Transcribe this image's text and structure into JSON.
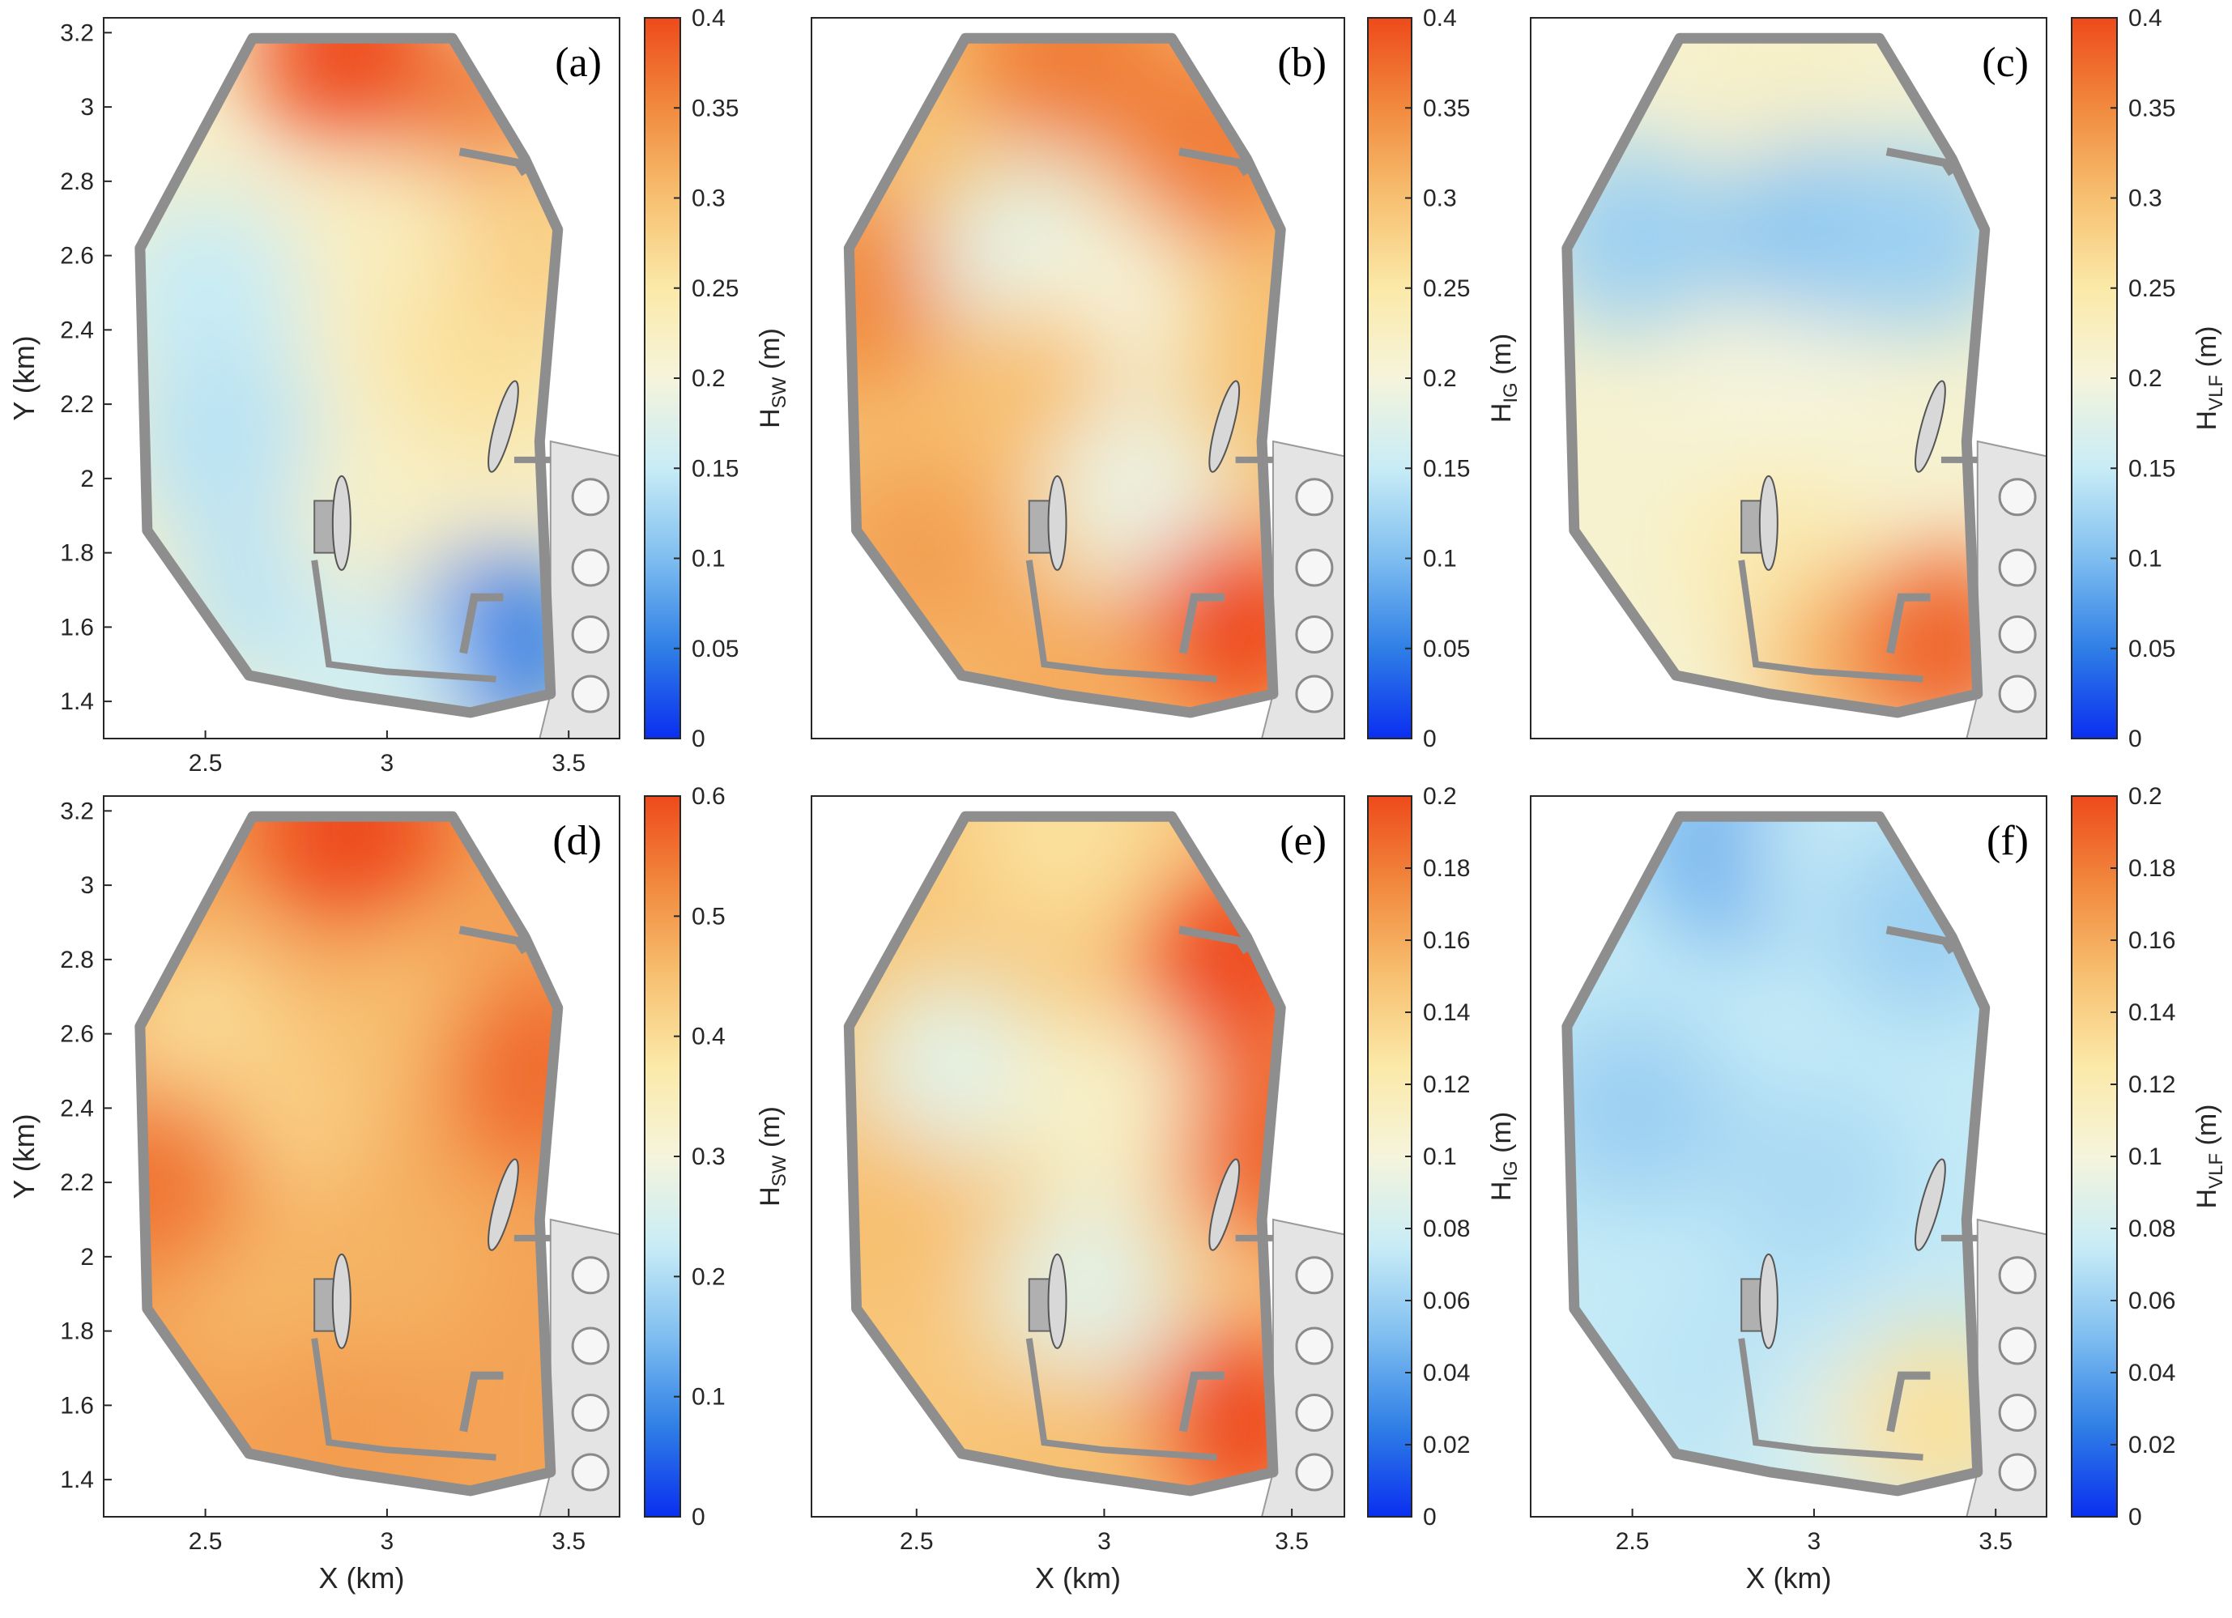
{
  "figure": {
    "colors": {
      "colormap": [
        "#0a2ff0",
        "#2f7fe6",
        "#7fbef0",
        "#c8ecf6",
        "#f5f4dc",
        "#fbe9a8",
        "#f7c071",
        "#f18a3e",
        "#ee4a1b"
      ],
      "land": "#e4e4e4",
      "breakwater": "#8e8e8e"
    }
  },
  "chart_data": [
    {
      "type": "heatmap",
      "panel": "(a)",
      "xlabel": "",
      "ylabel": "Y (km)",
      "xlim": [
        2.22,
        3.64
      ],
      "ylim": [
        1.3,
        3.24
      ],
      "x_ticks": [
        "2.5",
        "3",
        "3.5"
      ],
      "x_tick_values": [
        2.5,
        3.0,
        3.5
      ],
      "y_ticks": [
        "1.4",
        "1.6",
        "1.8",
        "2",
        "2.2",
        "2.4",
        "2.6",
        "2.8",
        "3",
        "3.2"
      ],
      "y_tick_values": [
        1.4,
        1.6,
        1.8,
        2.0,
        2.2,
        2.4,
        2.6,
        2.8,
        3.0,
        3.2
      ],
      "colorbar": {
        "label": "H",
        "sub": "SW",
        "unit": " (m)",
        "range": [
          0,
          0.4
        ],
        "ticks": [
          "0",
          "0.05",
          "0.1",
          "0.15",
          "0.2",
          "0.25",
          "0.3",
          "0.35",
          "0.4"
        ],
        "tick_values": [
          0,
          0.05,
          0.1,
          0.15,
          0.2,
          0.25,
          0.3,
          0.35,
          0.4
        ]
      },
      "field_points": [
        {
          "x": 2.9,
          "y": 3.15,
          "v": 0.4
        },
        {
          "x": 3.3,
          "y": 2.95,
          "v": 0.36
        },
        {
          "x": 2.5,
          "y": 2.5,
          "v": 0.15
        },
        {
          "x": 2.55,
          "y": 2.1,
          "v": 0.14
        },
        {
          "x": 2.7,
          "y": 1.7,
          "v": 0.14
        },
        {
          "x": 3.05,
          "y": 2.6,
          "v": 0.23
        },
        {
          "x": 3.25,
          "y": 2.3,
          "v": 0.26
        },
        {
          "x": 3.45,
          "y": 2.65,
          "v": 0.28
        },
        {
          "x": 3.0,
          "y": 1.9,
          "v": 0.22
        },
        {
          "x": 3.3,
          "y": 1.55,
          "v": 0.05
        },
        {
          "x": 2.95,
          "y": 1.45,
          "v": 0.16
        }
      ]
    },
    {
      "type": "heatmap",
      "panel": "(b)",
      "xlabel": "",
      "ylabel": "",
      "xlim": [
        2.22,
        3.64
      ],
      "ylim": [
        1.3,
        3.24
      ],
      "x_ticks": [],
      "x_tick_values": [],
      "y_ticks": [],
      "y_tick_values": [],
      "colorbar": {
        "label": "H",
        "sub": "IG",
        "unit": " (m)",
        "range": [
          0,
          0.4
        ],
        "ticks": [
          "0",
          "0.05",
          "0.1",
          "0.15",
          "0.2",
          "0.25",
          "0.3",
          "0.35",
          "0.4"
        ],
        "tick_values": [
          0,
          0.05,
          0.1,
          0.15,
          0.2,
          0.25,
          0.3,
          0.35,
          0.4
        ]
      },
      "field_points": [
        {
          "x": 2.9,
          "y": 3.15,
          "v": 0.36
        },
        {
          "x": 3.3,
          "y": 2.9,
          "v": 0.36
        },
        {
          "x": 2.35,
          "y": 2.5,
          "v": 0.35
        },
        {
          "x": 2.8,
          "y": 2.6,
          "v": 0.18
        },
        {
          "x": 3.0,
          "y": 2.45,
          "v": 0.2
        },
        {
          "x": 2.8,
          "y": 2.2,
          "v": 0.3
        },
        {
          "x": 3.1,
          "y": 1.95,
          "v": 0.19
        },
        {
          "x": 2.5,
          "y": 1.8,
          "v": 0.33
        },
        {
          "x": 3.35,
          "y": 1.6,
          "v": 0.4
        },
        {
          "x": 2.9,
          "y": 1.45,
          "v": 0.32
        }
      ]
    },
    {
      "type": "heatmap",
      "panel": "(c)",
      "xlabel": "",
      "ylabel": "",
      "xlim": [
        2.22,
        3.64
      ],
      "ylim": [
        1.3,
        3.24
      ],
      "x_ticks": [],
      "x_tick_values": [],
      "y_ticks": [],
      "y_tick_values": [],
      "colorbar": {
        "label": "H",
        "sub": "VLF",
        "unit": " (m)",
        "range": [
          0,
          0.4
        ],
        "ticks": [
          "0",
          "0.05",
          "0.1",
          "0.15",
          "0.2",
          "0.25",
          "0.3",
          "0.35",
          "0.4"
        ],
        "tick_values": [
          0,
          0.05,
          0.1,
          0.15,
          0.2,
          0.25,
          0.3,
          0.35,
          0.4
        ]
      },
      "field_points": [
        {
          "x": 2.9,
          "y": 3.15,
          "v": 0.22
        },
        {
          "x": 3.0,
          "y": 2.65,
          "v": 0.11
        },
        {
          "x": 2.5,
          "y": 2.65,
          "v": 0.12
        },
        {
          "x": 3.3,
          "y": 2.65,
          "v": 0.12
        },
        {
          "x": 2.9,
          "y": 2.2,
          "v": 0.2
        },
        {
          "x": 2.9,
          "y": 1.8,
          "v": 0.24
        },
        {
          "x": 3.1,
          "y": 1.5,
          "v": 0.3
        },
        {
          "x": 3.35,
          "y": 1.55,
          "v": 0.38
        }
      ]
    },
    {
      "type": "heatmap",
      "panel": "(d)",
      "xlabel": "X (km)",
      "ylabel": "Y (km)",
      "xlim": [
        2.22,
        3.64
      ],
      "ylim": [
        1.3,
        3.24
      ],
      "x_ticks": [
        "2.5",
        "3",
        "3.5"
      ],
      "x_tick_values": [
        2.5,
        3.0,
        3.5
      ],
      "y_ticks": [
        "1.4",
        "1.6",
        "1.8",
        "2",
        "2.2",
        "2.4",
        "2.6",
        "2.8",
        "3",
        "3.2"
      ],
      "y_tick_values": [
        1.4,
        1.6,
        1.8,
        2.0,
        2.2,
        2.4,
        2.6,
        2.8,
        3.0,
        3.2
      ],
      "colorbar": {
        "label": "H",
        "sub": "SW",
        "unit": " (m)",
        "range": [
          0,
          0.6
        ],
        "ticks": [
          "0",
          "0.1",
          "0.2",
          "0.3",
          "0.4",
          "0.5",
          "0.6"
        ],
        "tick_values": [
          0,
          0.1,
          0.2,
          0.3,
          0.4,
          0.5,
          0.6
        ]
      },
      "field_points": [
        {
          "x": 2.9,
          "y": 3.15,
          "v": 0.6
        },
        {
          "x": 2.5,
          "y": 2.6,
          "v": 0.4
        },
        {
          "x": 2.7,
          "y": 2.4,
          "v": 0.42
        },
        {
          "x": 3.05,
          "y": 2.6,
          "v": 0.45
        },
        {
          "x": 3.4,
          "y": 2.5,
          "v": 0.56
        },
        {
          "x": 2.6,
          "y": 2.0,
          "v": 0.46
        },
        {
          "x": 3.0,
          "y": 2.0,
          "v": 0.47
        },
        {
          "x": 2.9,
          "y": 1.5,
          "v": 0.5
        },
        {
          "x": 2.35,
          "y": 2.2,
          "v": 0.55
        }
      ]
    },
    {
      "type": "heatmap",
      "panel": "(e)",
      "xlabel": "X (km)",
      "ylabel": "",
      "xlim": [
        2.22,
        3.64
      ],
      "ylim": [
        1.3,
        3.24
      ],
      "x_ticks": [
        "2.5",
        "3",
        "3.5"
      ],
      "x_tick_values": [
        2.5,
        3.0,
        3.5
      ],
      "y_ticks": [],
      "y_tick_values": [],
      "colorbar": {
        "label": "H",
        "sub": "IG",
        "unit": " (m)",
        "range": [
          0,
          0.2
        ],
        "ticks": [
          "0",
          "0.02",
          "0.04",
          "0.06",
          "0.08",
          "0.1",
          "0.12",
          "0.14",
          "0.16",
          "0.18",
          "0.2"
        ],
        "tick_values": [
          0,
          0.02,
          0.04,
          0.06,
          0.08,
          0.1,
          0.12,
          0.14,
          0.16,
          0.18,
          0.2
        ]
      },
      "field_points": [
        {
          "x": 2.9,
          "y": 3.15,
          "v": 0.13
        },
        {
          "x": 3.35,
          "y": 2.8,
          "v": 0.2
        },
        {
          "x": 2.6,
          "y": 2.5,
          "v": 0.09
        },
        {
          "x": 3.0,
          "y": 2.4,
          "v": 0.11
        },
        {
          "x": 2.95,
          "y": 1.9,
          "v": 0.09
        },
        {
          "x": 2.4,
          "y": 2.1,
          "v": 0.15
        },
        {
          "x": 3.45,
          "y": 2.3,
          "v": 0.19
        },
        {
          "x": 3.35,
          "y": 1.55,
          "v": 0.2
        },
        {
          "x": 2.9,
          "y": 1.45,
          "v": 0.15
        }
      ]
    },
    {
      "type": "heatmap",
      "panel": "(f)",
      "xlabel": "X (km)",
      "ylabel": "",
      "xlim": [
        2.22,
        3.64
      ],
      "ylim": [
        1.3,
        3.24
      ],
      "x_ticks": [
        "2.5",
        "3",
        "3.5"
      ],
      "x_tick_values": [
        2.5,
        3.0,
        3.5
      ],
      "y_ticks": [],
      "y_tick_values": [],
      "colorbar": {
        "label": "H",
        "sub": "VLF",
        "unit": " (m)",
        "range": [
          0,
          0.2
        ],
        "ticks": [
          "0",
          "0.02",
          "0.04",
          "0.06",
          "0.08",
          "0.1",
          "0.12",
          "0.14",
          "0.16",
          "0.18",
          "0.2"
        ],
        "tick_values": [
          0,
          0.02,
          0.04,
          0.06,
          0.08,
          0.1,
          0.12,
          0.14,
          0.16,
          0.18,
          0.2
        ]
      },
      "field_points": [
        {
          "x": 2.8,
          "y": 3.1,
          "v": 0.045
        },
        {
          "x": 3.1,
          "y": 3.1,
          "v": 0.075
        },
        {
          "x": 3.3,
          "y": 2.9,
          "v": 0.06
        },
        {
          "x": 2.5,
          "y": 2.4,
          "v": 0.06
        },
        {
          "x": 3.0,
          "y": 2.2,
          "v": 0.065
        },
        {
          "x": 2.8,
          "y": 1.7,
          "v": 0.07
        },
        {
          "x": 3.1,
          "y": 1.5,
          "v": 0.085
        },
        {
          "x": 3.35,
          "y": 1.55,
          "v": 0.13
        }
      ]
    }
  ]
}
